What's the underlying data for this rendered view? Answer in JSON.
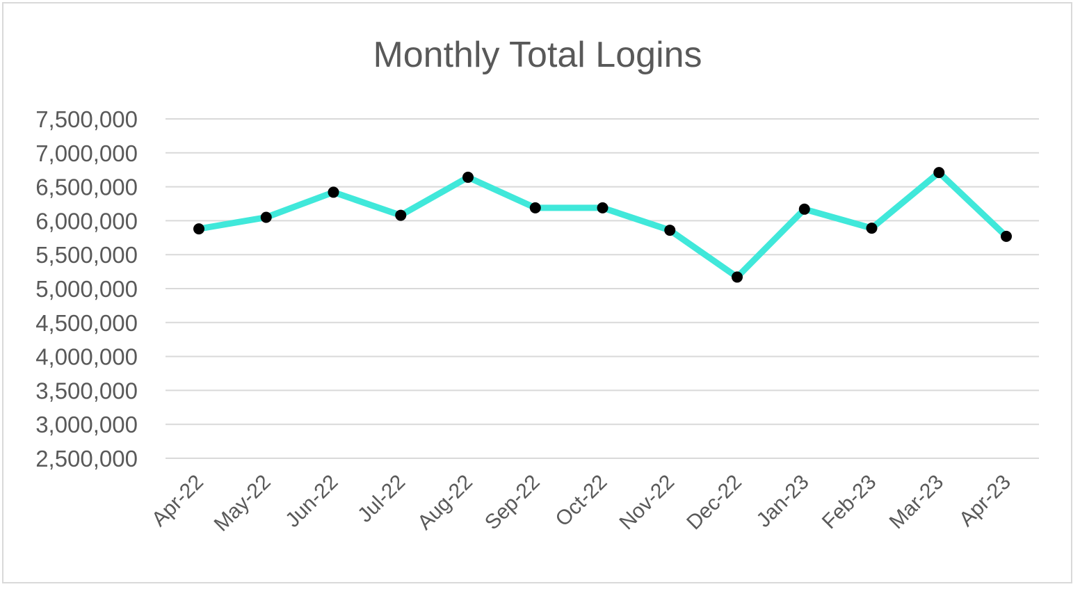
{
  "chart_data": {
    "type": "line",
    "title": "Monthly Total Logins",
    "xlabel": "",
    "ylabel": "",
    "categories": [
      "Apr-22",
      "May-22",
      "Jun-22",
      "Jul-22",
      "Aug-22",
      "Sep-22",
      "Oct-22",
      "Nov-22",
      "Dec-22",
      "Jan-23",
      "Feb-23",
      "Mar-23",
      "Apr-23"
    ],
    "series": [
      {
        "values": [
          5880000,
          6050000,
          6420000,
          6080000,
          6640000,
          6190000,
          6190000,
          5860000,
          5170000,
          6170000,
          5890000,
          6710000,
          5770000
        ],
        "line_color": "#40E8DA",
        "marker_color": "#000000"
      }
    ],
    "ylim": [
      2500000,
      7500000
    ],
    "y_ticks": [
      "2,500,000",
      "3,000,000",
      "3,500,000",
      "4,000,000",
      "4,500,000",
      "5,000,000",
      "5,500,000",
      "6,000,000",
      "6,500,000",
      "7,000,000",
      "7,500,000"
    ],
    "y_tick_values": [
      2500000,
      3000000,
      3500000,
      4000000,
      4500000,
      5000000,
      5500000,
      6000000,
      6500000,
      7000000,
      7500000
    ],
    "grid": true,
    "legend": "none"
  }
}
